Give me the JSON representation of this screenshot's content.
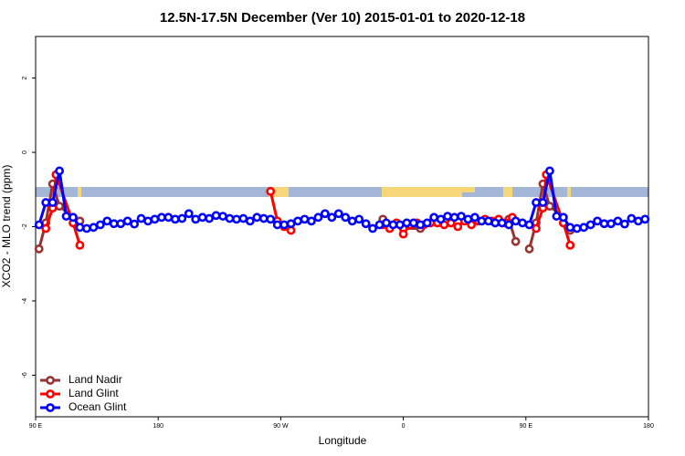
{
  "chart_data": {
    "type": "line",
    "title": "12.5N-17.5N December (Ver 10)   2015-01-01 to 2020-12-18",
    "xlabel": "Longitude",
    "ylabel": "XCO2 - MLO trend (ppm)",
    "xlim": [
      90,
      540
    ],
    "xticks": [
      {
        "value": 90,
        "label": "90 E"
      },
      {
        "value": 180,
        "label": "180"
      },
      {
        "value": 270,
        "label": "90 W"
      },
      {
        "value": 360,
        "label": "0"
      },
      {
        "value": 450,
        "label": "90 E"
      },
      {
        "value": 540,
        "label": "180"
      }
    ],
    "ylim": [
      -7.12,
      3.12
    ],
    "yticks": [
      -6,
      -4,
      -2,
      0,
      2
    ],
    "legend": "bottom-left",
    "series": [
      {
        "name": "Land Nadir",
        "color": "#993333",
        "x": [
          92.5,
          97.5,
          102.5,
          107.5,
          117.5,
          122.5,
          130,
          345,
          360,
          372.5,
          400,
          437.5,
          442.5,
          447,
          452.5,
          457.5,
          462.5,
          467.5,
          477.5,
          482.5
        ],
        "values": [
          -2.6,
          -1.9,
          -0.85,
          -1.45,
          -1.75,
          -1.85,
          null,
          -1.8,
          -2.05,
          -2.05,
          null,
          -1.8,
          -2.4,
          null,
          -2.6,
          -1.9,
          -0.85,
          -1.45,
          -1.75,
          -2.1
        ]
      },
      {
        "name": "Land Glint",
        "color": "#ff0000",
        "x": [
          97.5,
          102.5,
          105,
          117.5,
          122.5,
          200,
          262.5,
          267.5,
          272.5,
          277.5,
          300,
          345,
          350,
          355,
          360,
          365,
          370,
          375,
          380,
          385,
          390,
          395,
          400,
          405,
          410,
          415,
          420,
          425,
          430,
          435,
          440,
          450,
          457.5,
          462.5,
          465,
          477.5,
          482.5
        ],
        "values": [
          -2.05,
          -1.5,
          -0.6,
          -1.9,
          -2.5,
          null,
          -1.05,
          -1.85,
          -2.0,
          -2.1,
          null,
          -1.95,
          -2.05,
          -1.9,
          -2.2,
          -1.95,
          -1.9,
          -1.95,
          -1.9,
          -1.9,
          -1.95,
          -1.9,
          -2.0,
          -1.85,
          -1.95,
          -1.85,
          -1.8,
          -1.85,
          -1.8,
          -1.9,
          -1.75,
          null,
          -2.05,
          -1.5,
          -0.6,
          -1.9,
          -2.5
        ]
      },
      {
        "name": "Ocean Glint",
        "color": "#0000ff",
        "x": [
          92.5,
          97.5,
          102.5,
          107.5,
          112.5,
          117.5,
          122.5,
          127.5,
          132.5,
          137.5,
          142.5,
          147.5,
          152.5,
          157.5,
          162.5,
          167.5,
          172.5,
          177.5,
          182.5,
          187.5,
          192.5,
          197.5,
          202.5,
          207.5,
          212.5,
          217.5,
          222.5,
          227.5,
          232.5,
          237.5,
          242.5,
          247.5,
          252.5,
          257.5,
          262.5,
          267.5,
          272.5,
          277.5,
          282.5,
          287.5,
          292.5,
          297.5,
          302.5,
          307.5,
          312.5,
          317.5,
          322.5,
          327.5,
          332.5,
          337.5,
          342.5,
          347.5,
          352.5,
          357.5,
          362.5,
          367.5,
          372.5,
          377.5,
          382.5,
          387.5,
          392.5,
          397.5,
          402.5,
          407.5,
          412.5,
          417.5,
          422.5,
          427.5,
          432.5,
          437.5,
          442.5,
          447.5,
          452.5,
          457.5,
          462.5,
          467.5,
          472.5,
          477.5,
          482.5,
          487.5,
          492.5,
          497.5,
          502.5,
          507.5,
          512.5,
          517.5,
          522.5,
          527.5,
          532.5,
          537.5
        ],
        "values": [
          -1.95,
          -1.35,
          -1.35,
          -0.5,
          -1.72,
          -1.75,
          -2.02,
          -2.05,
          -2.02,
          -1.95,
          -1.85,
          -1.92,
          -1.92,
          -1.85,
          -1.93,
          -1.78,
          -1.85,
          -1.8,
          -1.75,
          -1.75,
          -1.8,
          -1.78,
          -1.65,
          -1.8,
          -1.75,
          -1.78,
          -1.7,
          -1.72,
          -1.78,
          -1.8,
          -1.78,
          -1.85,
          -1.75,
          -1.78,
          -1.8,
          -1.95,
          -1.95,
          -1.92,
          -1.85,
          -1.8,
          -1.85,
          -1.75,
          -1.65,
          -1.75,
          -1.65,
          -1.75,
          -1.85,
          -1.8,
          -1.92,
          -2.05,
          -1.95,
          -1.9,
          -1.95,
          -1.95,
          -1.9,
          -1.9,
          -1.95,
          -1.9,
          -1.75,
          -1.8,
          -1.72,
          -1.75,
          -1.72,
          -1.8,
          -1.75,
          -1.85,
          -1.85,
          -1.9,
          -1.9,
          -1.95,
          -1.85,
          -1.9,
          -1.95,
          -1.35,
          -1.35,
          -0.5,
          -1.72,
          -1.75,
          -2.02,
          -2.05,
          -2.02,
          -1.95,
          -1.85,
          -1.92,
          -1.92,
          -1.85,
          -1.93,
          -1.78,
          -1.85,
          -1.8
        ]
      }
    ]
  }
}
